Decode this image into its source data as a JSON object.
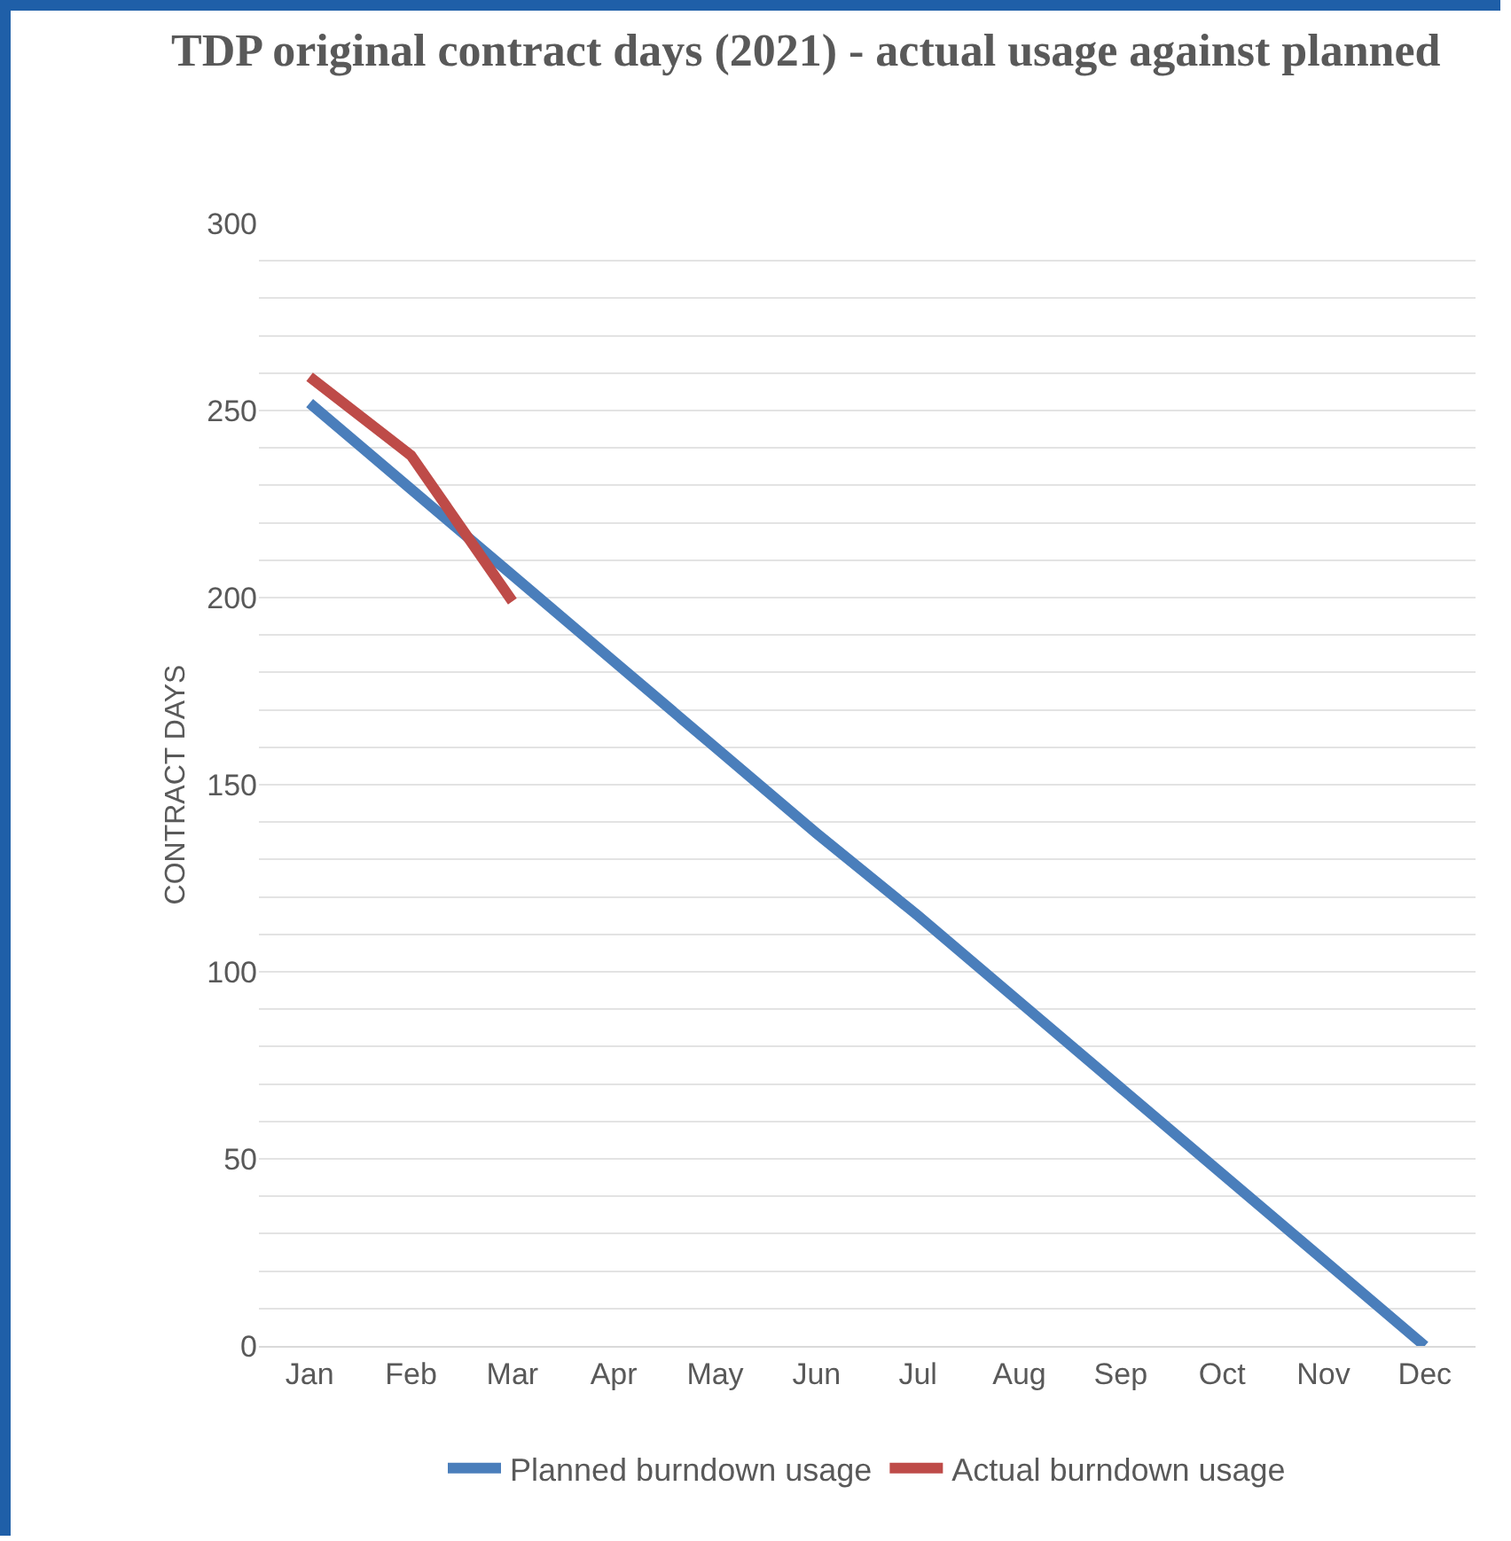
{
  "chart_data": {
    "type": "line",
    "title": "TDP original contract days (2021) - actual usage against planned",
    "ylabel": "CONTRACT DAYS",
    "categories": [
      "Jan",
      "Feb",
      "Mar",
      "Apr",
      "May",
      "Jun",
      "Jul",
      "Aug",
      "Sep",
      "Oct",
      "Nov",
      "Dec"
    ],
    "series": [
      {
        "name": "Planned burndown usage",
        "color": "#4a7ebb",
        "values": [
          252,
          229,
          206,
          183,
          160,
          137,
          115,
          92,
          69,
          46,
          23,
          0
        ]
      },
      {
        "name": "Actual burndown usage",
        "color": "#be4b48",
        "values": [
          259,
          238,
          199,
          null,
          null,
          null,
          null,
          null,
          null,
          null,
          null,
          null
        ]
      }
    ],
    "ylim": [
      0,
      300
    ],
    "yticks": [
      0,
      {
        "value": 10,
        "label": null
      },
      {
        "value": 20,
        "label": null
      },
      {
        "value": 30,
        "label": null
      },
      {
        "value": 40,
        "label": null
      },
      50,
      {
        "value": 60,
        "label": null
      },
      {
        "value": 70,
        "label": null
      },
      {
        "value": 80,
        "label": null
      },
      {
        "value": 90,
        "label": null
      },
      100,
      {
        "value": 110,
        "label": null
      },
      {
        "value": 120,
        "label": null
      },
      {
        "value": 130,
        "label": null
      },
      {
        "value": 140,
        "label": null
      },
      150,
      {
        "value": 160,
        "label": null
      },
      {
        "value": 170,
        "label": null
      },
      {
        "value": 180,
        "label": null
      },
      {
        "value": 190,
        "label": null
      },
      200,
      {
        "value": 210,
        "label": null
      },
      {
        "value": 220,
        "label": null
      },
      {
        "value": 230,
        "label": null
      },
      {
        "value": 240,
        "label": null
      },
      250,
      {
        "value": 260,
        "label": null
      },
      {
        "value": 270,
        "label": null
      },
      {
        "value": 280,
        "label": null
      },
      {
        "value": 290,
        "label": null
      },
      300
    ],
    "grid": "y",
    "legend": "bottom",
    "marker": "none",
    "line_style": "solid"
  }
}
